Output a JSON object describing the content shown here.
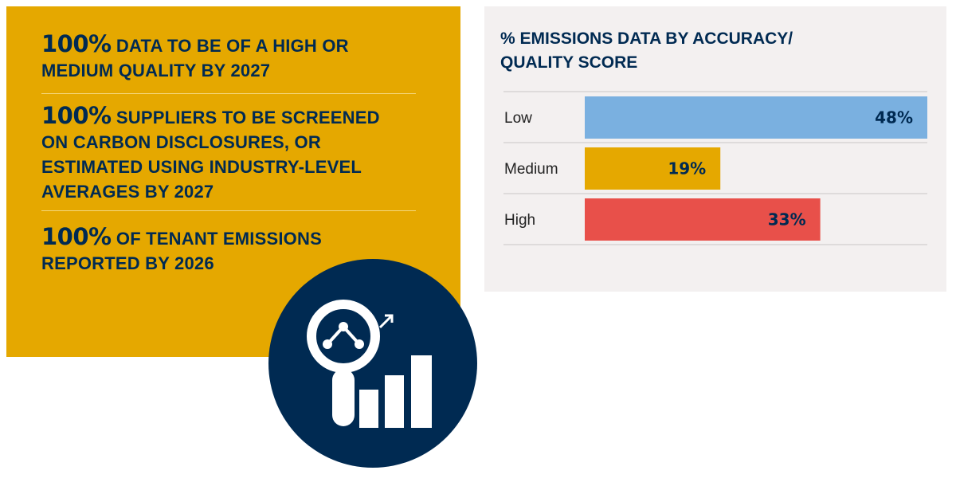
{
  "targets": [
    {
      "big": "100%",
      "text": "DATA TO BE OF A HIGH OR MEDIUM QUALITY BY 2027",
      "line1": "DATA TO BE OF A HIGH OR",
      "lines": [
        "MEDIUM QUALITY BY 2027"
      ]
    },
    {
      "big": "100%",
      "line1": "SUPPLIERS TO BE SCREENED",
      "lines": [
        "ON CARBON DISCLOSURES, OR",
        "ESTIMATED USING INDUSTRY-LEVEL",
        "AVERAGES BY 2027"
      ]
    },
    {
      "big": "100%",
      "line1": "OF TENANT EMISSIONS",
      "lines": [
        "REPORTED BY 2026"
      ]
    }
  ],
  "badge": {
    "icon": "magnifier-chart-icon"
  },
  "colors": {
    "panel": "#e5a800",
    "navy": "#002a52",
    "card": "#f3f0f0",
    "low": "#7ab0e0",
    "medium": "#e5a800",
    "high": "#e8504a"
  },
  "chart_data": {
    "type": "bar",
    "orientation": "horizontal",
    "title": "% EMISSIONS DATA BY ACCURACY/ QUALITY SCORE",
    "title_lines": [
      "% EMISSIONS DATA BY ACCURACY/",
      "QUALITY SCORE"
    ],
    "categories": [
      "Low",
      "Medium",
      "High"
    ],
    "values": [
      48,
      19,
      33
    ],
    "value_labels": [
      "48%",
      "19%",
      "33%"
    ],
    "colors": [
      "#7ab0e0",
      "#e5a800",
      "#e8504a"
    ],
    "xlim": [
      0,
      48
    ],
    "xlabel": "",
    "ylabel": ""
  }
}
